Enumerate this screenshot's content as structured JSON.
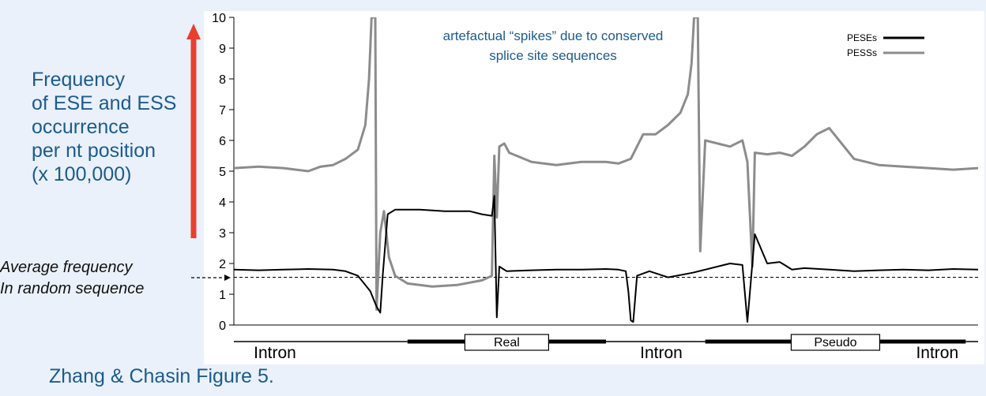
{
  "ylabel_lines": [
    "Frequency",
    "of ESE and ESS",
    "occurrence",
    "per nt position",
    "(x 100,000)"
  ],
  "average_lines": [
    "Average frequency",
    "In random sequence"
  ],
  "caption": "Zhang & Chasin Figure 5.",
  "colors": {
    "background": "#eaf1fa",
    "panel": "#ffffff",
    "pese": "#000000",
    "pess": "#8c8c8c",
    "annotation_text": "#1c5b8f",
    "arrow": "#e8402f"
  },
  "chart_data": {
    "type": "line",
    "annotation": "artefactual “spikes” due to conserved splice site sequences",
    "ylim": [
      0,
      10
    ],
    "yticks": [
      0,
      1,
      2,
      3,
      4,
      5,
      6,
      7,
      8,
      9,
      10
    ],
    "xlim": [
      0,
      600
    ],
    "grid": false,
    "legend_position": "top-right",
    "average_random_frequency": 1.55,
    "regions": [
      {
        "label": "Intron",
        "type": "intron",
        "x": [
          0,
          140
        ]
      },
      {
        "label": "Real",
        "type": "exon",
        "x": [
          140,
          300
        ]
      },
      {
        "label": "Intron",
        "type": "intron",
        "x": [
          300,
          380
        ]
      },
      {
        "label": "Pseudo",
        "type": "exon",
        "x": [
          380,
          590
        ]
      },
      {
        "label": "Intron",
        "type": "intron",
        "x": [
          590,
          600
        ]
      }
    ],
    "series": [
      {
        "name": "PESEs",
        "x": [
          0,
          20,
          40,
          60,
          80,
          90,
          100,
          110,
          115,
          118,
          120,
          124,
          130,
          150,
          170,
          190,
          200,
          208,
          210,
          212,
          214,
          220,
          240,
          260,
          280,
          300,
          310,
          316,
          318,
          320,
          322,
          325,
          335,
          350,
          370,
          380,
          390,
          400,
          410,
          414,
          420,
          430,
          440,
          444,
          446,
          448,
          450,
          460,
          480,
          500,
          520,
          540,
          560,
          580,
          600
        ],
        "values": [
          1.8,
          1.78,
          1.8,
          1.82,
          1.8,
          1.75,
          1.6,
          1.1,
          0.6,
          0.4,
          1.6,
          3.6,
          3.75,
          3.75,
          3.7,
          3.7,
          3.6,
          3.55,
          4.2,
          0.25,
          1.9,
          1.75,
          1.78,
          1.8,
          1.8,
          1.82,
          1.8,
          1.75,
          1.1,
          0.15,
          0.1,
          1.6,
          1.75,
          1.55,
          1.7,
          1.8,
          1.9,
          2.0,
          1.95,
          0.1,
          2.95,
          2.0,
          2.05,
          1.95,
          1.9,
          1.85,
          1.8,
          1.85,
          1.8,
          1.75,
          1.78,
          1.8,
          1.78,
          1.82,
          1.8
        ]
      },
      {
        "name": "PESSs",
        "x": [
          0,
          20,
          40,
          60,
          70,
          80,
          90,
          100,
          106,
          109,
          111,
          114,
          115,
          118,
          121,
          125,
          130,
          140,
          160,
          180,
          200,
          208,
          210,
          212,
          214,
          218,
          222,
          228,
          240,
          260,
          280,
          300,
          310,
          320,
          330,
          340,
          350,
          360,
          366,
          369,
          371,
          374,
          376,
          380,
          400,
          410,
          414,
          418,
          420,
          430,
          440,
          450,
          460,
          470,
          480,
          500,
          520,
          540,
          560,
          580,
          600
        ],
        "values": [
          5.1,
          5.15,
          5.1,
          5.0,
          5.15,
          5.2,
          5.4,
          5.7,
          6.5,
          8.0,
          10.0,
          10.0,
          0.5,
          3.0,
          3.7,
          2.2,
          1.6,
          1.35,
          1.25,
          1.3,
          1.45,
          1.6,
          5.5,
          3.5,
          5.8,
          5.9,
          5.6,
          5.5,
          5.3,
          5.2,
          5.3,
          5.3,
          5.25,
          5.4,
          6.2,
          6.2,
          6.5,
          6.9,
          7.5,
          8.5,
          10.0,
          10.0,
          2.4,
          6.0,
          5.8,
          6.0,
          5.3,
          1.9,
          5.6,
          5.55,
          5.6,
          5.5,
          5.8,
          6.2,
          6.4,
          5.4,
          5.2,
          5.15,
          5.1,
          5.05,
          5.1
        ]
      }
    ]
  }
}
